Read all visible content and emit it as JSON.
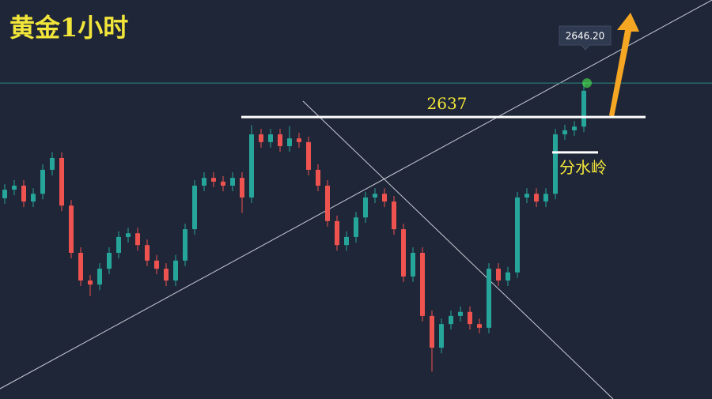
{
  "chart_data": {
    "type": "candlestick",
    "title": "黄金1小时",
    "ylim": [
      2560.6,
      2668.7
    ],
    "up_color": "#26a69a",
    "down_color": "#ef5350",
    "series": {
      "open": [
        2615.0,
        2617.3,
        2618.4,
        2614.1,
        2616.2,
        2622.7,
        2625.9,
        2613.0,
        2600.2,
        2592.7,
        2591.6,
        2595.9,
        2600.2,
        2604.5,
        2605.5,
        2602.3,
        2598.1,
        2595.9,
        2592.7,
        2598.1,
        2606.6,
        2618.4,
        2620.5,
        2619.5,
        2618.4,
        2620.5,
        2615.2,
        2632.3,
        2630.2,
        2632.3,
        2629.1,
        2631.2,
        2630.2,
        2622.7,
        2618.4,
        2608.8,
        2602.3,
        2604.5,
        2609.8,
        2615.2,
        2616.2,
        2614.1,
        2606.6,
        2593.8,
        2600.2,
        2583.1,
        2574.5,
        2580.9,
        2583.1,
        2584.2,
        2580.9,
        2579.9,
        2595.9,
        2592.7,
        2594.9,
        2615.2,
        2616.2,
        2614.1,
        2616.2,
        2632.3,
        2633.4,
        2634.4
      ],
      "high": [
        2618.8,
        2619.9,
        2619.9,
        2617.7,
        2624.2,
        2627.4,
        2627.4,
        2614.5,
        2601.7,
        2594.2,
        2597.4,
        2601.7,
        2606.0,
        2607.0,
        2607.0,
        2603.8,
        2599.6,
        2597.4,
        2599.6,
        2608.1,
        2619.9,
        2622.0,
        2622.0,
        2621.0,
        2622.0,
        2622.0,
        2634.8,
        2633.8,
        2633.8,
        2633.8,
        2634.5,
        2632.7,
        2631.7,
        2624.2,
        2619.9,
        2610.3,
        2606.0,
        2611.3,
        2616.7,
        2617.7,
        2617.7,
        2615.6,
        2608.1,
        2601.7,
        2601.7,
        2584.6,
        2582.4,
        2584.6,
        2585.7,
        2585.7,
        2582.4,
        2597.4,
        2597.4,
        2596.4,
        2616.7,
        2617.7,
        2617.7,
        2617.7,
        2633.8,
        2634.9,
        2635.9,
        2646.2
      ],
      "low": [
        2613.5,
        2615.8,
        2612.6,
        2612.6,
        2614.7,
        2621.2,
        2611.5,
        2598.7,
        2591.2,
        2588.5,
        2590.1,
        2594.4,
        2598.7,
        2603.0,
        2600.8,
        2596.6,
        2594.4,
        2591.2,
        2591.2,
        2596.6,
        2605.1,
        2616.9,
        2618.0,
        2616.9,
        2616.9,
        2611.0,
        2613.7,
        2628.7,
        2628.7,
        2627.6,
        2627.6,
        2628.7,
        2621.2,
        2616.9,
        2607.3,
        2600.8,
        2600.8,
        2603.0,
        2608.3,
        2613.7,
        2612.6,
        2605.1,
        2592.3,
        2592.3,
        2581.6,
        2568.0,
        2573.0,
        2579.4,
        2581.6,
        2579.4,
        2578.4,
        2578.4,
        2591.2,
        2591.2,
        2593.4,
        2613.7,
        2612.6,
        2612.6,
        2614.7,
        2630.8,
        2631.9,
        2632.9
      ],
      "close": [
        2617.3,
        2618.4,
        2614.1,
        2616.2,
        2622.7,
        2625.9,
        2613.0,
        2600.2,
        2592.7,
        2591.6,
        2595.9,
        2600.2,
        2604.5,
        2605.5,
        2602.3,
        2598.1,
        2595.9,
        2592.7,
        2598.1,
        2606.6,
        2618.4,
        2620.5,
        2619.5,
        2618.4,
        2620.5,
        2615.2,
        2632.3,
        2630.2,
        2632.3,
        2629.1,
        2631.2,
        2630.2,
        2622.7,
        2618.4,
        2608.8,
        2602.3,
        2604.5,
        2609.8,
        2615.2,
        2616.2,
        2614.1,
        2606.6,
        2593.8,
        2600.2,
        2583.1,
        2574.5,
        2580.9,
        2583.1,
        2584.2,
        2580.9,
        2579.9,
        2595.9,
        2592.7,
        2594.9,
        2615.2,
        2616.2,
        2614.1,
        2616.2,
        2632.3,
        2633.4,
        2634.4,
        2644.1
      ]
    },
    "price_tag": {
      "value": 2646.2,
      "label": "2646.20"
    },
    "resistance": 2637,
    "pivot": {
      "value": 2627.4,
      "label": "分水岭"
    }
  }
}
